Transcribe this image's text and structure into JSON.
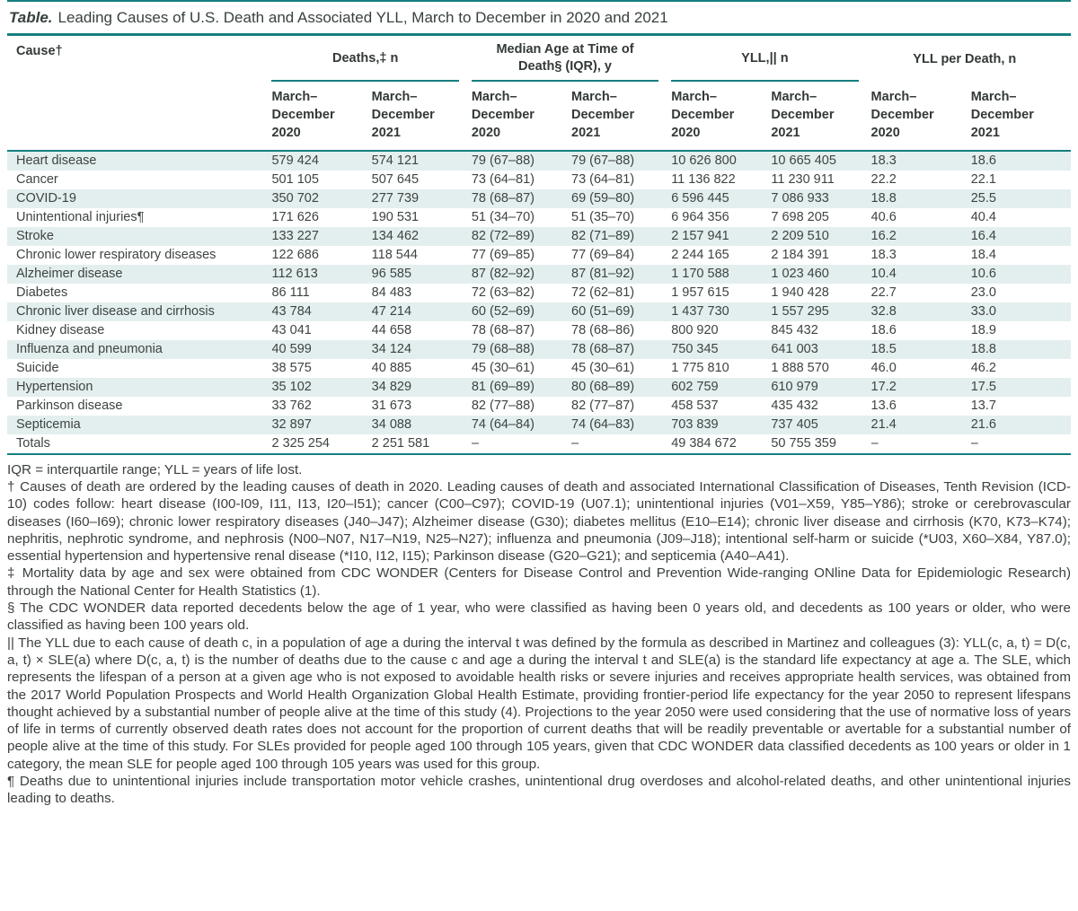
{
  "title": {
    "label": "Table.",
    "text": "Leading Causes of U.S. Death and Associated YLL, March to December in 2020 and 2021"
  },
  "colors": {
    "teal_rule": "#157f7e",
    "row_stripe": "#e3efee",
    "text": "#3e4343"
  },
  "table": {
    "cause_header": "Cause†",
    "spanners": [
      "Deaths,‡ n",
      "Median Age at Time of Death§ (IQR), y",
      "YLL,|| n",
      "YLL per Death, n"
    ],
    "period_2020": "March–December 2020",
    "period_2021": "March–December 2021",
    "rows": [
      {
        "cause": "Heart disease",
        "values": [
          "579 424",
          "574 121",
          "79 (67–88)",
          "79 (67–88)",
          "10 626 800",
          "10 665 405",
          "18.3",
          "18.6"
        ]
      },
      {
        "cause": "Cancer",
        "values": [
          "501 105",
          "507 645",
          "73 (64–81)",
          "73 (64–81)",
          "11 136 822",
          "11 230 911",
          "22.2",
          "22.1"
        ]
      },
      {
        "cause": "COVID-19",
        "values": [
          "350 702",
          "277 739",
          "78 (68–87)",
          "69 (59–80)",
          "6 596 445",
          "7 086 933",
          "18.8",
          "25.5"
        ]
      },
      {
        "cause": "Unintentional injuries¶",
        "values": [
          "171 626",
          "190 531",
          "51 (34–70)",
          "51 (35–70)",
          "6 964 356",
          "7 698 205",
          "40.6",
          "40.4"
        ]
      },
      {
        "cause": "Stroke",
        "values": [
          "133 227",
          "134 462",
          "82 (72–89)",
          "82 (71–89)",
          "2 157 941",
          "2 209 510",
          "16.2",
          "16.4"
        ]
      },
      {
        "cause": "Chronic lower respiratory diseases",
        "values": [
          "122 686",
          "118 544",
          "77 (69–85)",
          "77 (69–84)",
          "2 244 165",
          "2 184 391",
          "18.3",
          "18.4"
        ]
      },
      {
        "cause": "Alzheimer disease",
        "values": [
          "112 613",
          "96 585",
          "87 (82–92)",
          "87 (81–92)",
          "1 170 588",
          "1 023 460",
          "10.4",
          "10.6"
        ]
      },
      {
        "cause": "Diabetes",
        "values": [
          "86 111",
          "84 483",
          "72 (63–82)",
          "72 (62–81)",
          "1 957 615",
          "1 940 428",
          "22.7",
          "23.0"
        ]
      },
      {
        "cause": "Chronic liver disease and cirrhosis",
        "values": [
          "43 784",
          "47 214",
          "60 (52–69)",
          "60 (51–69)",
          "1 437 730",
          "1 557 295",
          "32.8",
          "33.0"
        ]
      },
      {
        "cause": "Kidney disease",
        "values": [
          "43 041",
          "44 658",
          "78 (68–87)",
          "78 (68–86)",
          "800 920",
          "845 432",
          "18.6",
          "18.9"
        ]
      },
      {
        "cause": "Influenza and pneumonia",
        "values": [
          "40 599",
          "34 124",
          "79 (68–88)",
          "78 (68–87)",
          "750 345",
          "641 003",
          "18.5",
          "18.8"
        ]
      },
      {
        "cause": "Suicide",
        "values": [
          "38 575",
          "40 885",
          "45 (30–61)",
          "45 (30–61)",
          "1 775 810",
          "1 888 570",
          "46.0",
          "46.2"
        ]
      },
      {
        "cause": "Hypertension",
        "values": [
          "35 102",
          "34 829",
          "81 (69–89)",
          "80 (68–89)",
          "602 759",
          "610 979",
          "17.2",
          "17.5"
        ]
      },
      {
        "cause": "Parkinson disease",
        "values": [
          "33 762",
          "31 673",
          "82 (77–88)",
          "82 (77–87)",
          "458 537",
          "435 432",
          "13.6",
          "13.7"
        ]
      },
      {
        "cause": "Septicemia",
        "values": [
          "32 897",
          "34 088",
          "74 (64–84)",
          "74 (64–83)",
          "703 839",
          "737 405",
          "21.4",
          "21.6"
        ]
      }
    ],
    "totals": {
      "cause": "Totals",
      "values": [
        "2 325 254",
        "2 251 581",
        "–",
        "–",
        "49 384 672",
        "50 755 359",
        "–",
        "–"
      ]
    }
  },
  "footnotes": [
    "IQR = interquartile range; YLL = years of life lost.",
    "† Causes of death are ordered by the leading causes of death in 2020. Leading causes of death and associated International Classification of Diseases, Tenth Revision (ICD-10) codes follow: heart disease (I00-I09, I11, I13, I20–I51); cancer (C00–C97); COVID-19 (U07.1); unintentional injuries (V01–X59, Y85–Y86); stroke or cerebrovascular diseases (I60–I69); chronic lower respiratory diseases (J40–J47); Alzheimer disease (G30); diabetes mellitus (E10–E14); chronic liver disease and cirrhosis (K70, K73–K74); nephritis, nephrotic syndrome, and nephrosis (N00–N07, N17–N19, N25–N27); influenza and pneumonia (J09–J18); intentional self-harm or suicide (*U03, X60–X84, Y87.0); essential hypertension and hypertensive renal disease (*I10, I12, I15); Parkinson disease (G20–G21); and septicemia (A40–A41).",
    "‡ Mortality data by age and sex were obtained from CDC WONDER (Centers for Disease Control and Prevention Wide-ranging ONline Data for Epidemiologic Research) through the National Center for Health Statistics (1).",
    "§ The CDC WONDER data reported decedents below the age of 1 year, who were classified as having been 0 years old, and decedents as 100 years or older, who were classified as having been 100 years old.",
    "|| The YLL due to each cause of death c, in a population of age a during the interval t was defined by the formula as described in Martinez and colleagues (3): YLL(c, a, t) = D(c, a, t) × SLE(a) where D(c, a, t) is the number of deaths due to the cause c and age a during the interval t and SLE(a) is the standard life expectancy at age a. The SLE, which represents the lifespan of a person at a given age who is not exposed to avoidable health risks or severe injuries and receives appropriate health services, was obtained from the 2017 World Population Prospects and World Health Organization Global Health Estimate, providing frontier-period life expectancy for the year 2050 to represent lifespans thought achieved by a substantial number of people alive at the time of this study (4). Projections to the year 2050 were used considering that the use of normative loss of years of life in terms of currently observed death rates does not account for the proportion of current deaths that will be readily preventable or avertable for a substantial number of people alive at the time of this study. For SLEs provided for people aged 100 through 105 years, given that CDC WONDER data classified decedents as 100 years or older in 1 category, the mean SLE for people aged 100 through 105 years was used for this group.",
    "¶ Deaths due to unintentional injuries include transportation motor vehicle crashes, unintentional drug overdoses and alcohol-related deaths, and other unintentional injuries leading to deaths."
  ]
}
